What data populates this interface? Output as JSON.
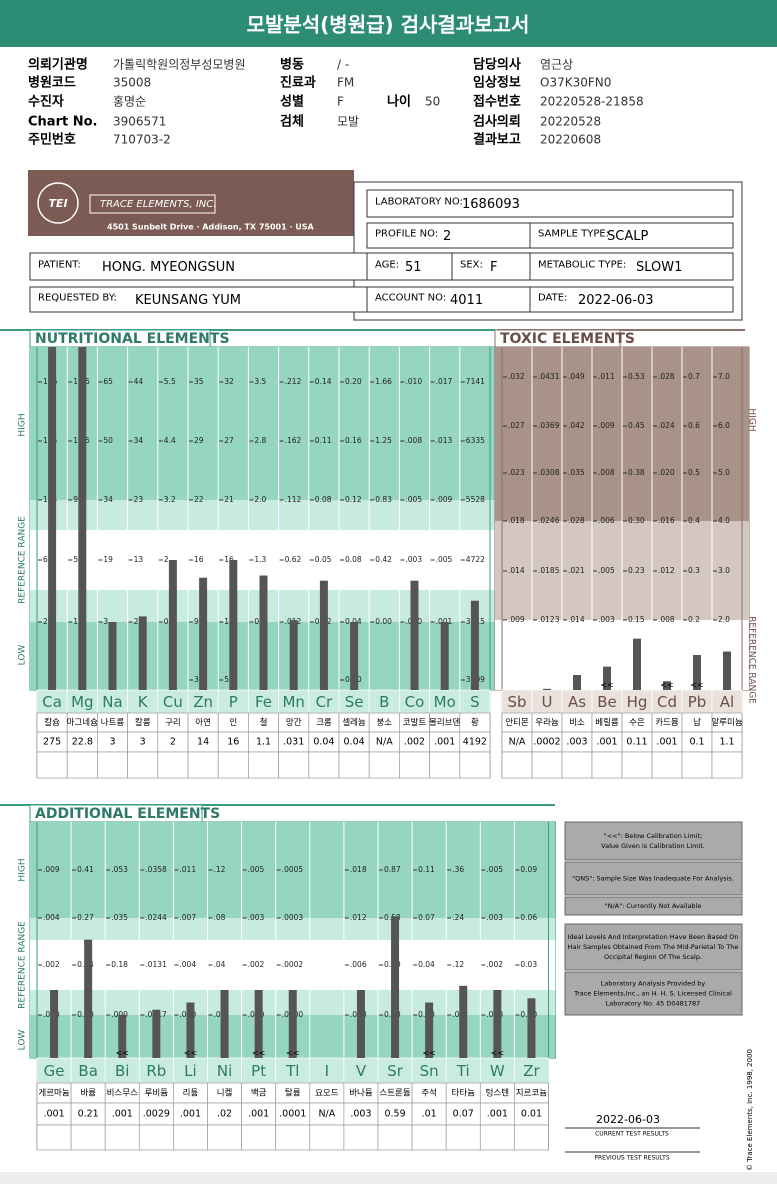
{
  "header": {
    "title": "모발분석(병원급) 검사결과보고서",
    "fields": [
      {
        "label": "의뢰기관명",
        "value": "가톨릭학원의정부성모병원"
      },
      {
        "label": "병동",
        "value": "/ -"
      },
      {
        "label": "담당의사",
        "value": "염근상"
      },
      {
        "label": "병원코드",
        "value": "35008"
      },
      {
        "label": "진료과",
        "value": "FM"
      },
      {
        "label": "임상정보",
        "value": "O37K30FN0"
      },
      {
        "label": "수진자",
        "value": "홍명순"
      },
      {
        "label": "성별",
        "value": "F"
      },
      {
        "label": "나이",
        "value": "50"
      },
      {
        "label": "접수번호",
        "value": "20220528-21858"
      },
      {
        "label": "Chart No.",
        "value": "3906571"
      },
      {
        "label": "검체",
        "value": "모발"
      },
      {
        "label": "검사의뢰",
        "value": "20220528"
      },
      {
        "label": "주민번호",
        "value": "710703-2"
      },
      {
        "label": "결과보고",
        "value": "20220608"
      }
    ]
  },
  "lab": {
    "logo": "TEI",
    "company": "TRACE ELEMENTS, INC.",
    "address": "4501 Sunbelt Drive  ·  Addison, TX 75001  ·  USA",
    "fields": [
      {
        "label": "LABORATORY NO:",
        "value": "1686093"
      },
      {
        "label": "PROFILE NO:",
        "value": "2"
      },
      {
        "label": "SAMPLE TYPE:",
        "value": "SCALP"
      },
      {
        "label": "PATIENT:",
        "value": "HONG. MYEONGSUN"
      },
      {
        "label": "AGE:",
        "value": "51"
      },
      {
        "label": "SEX:",
        "value": "F"
      },
      {
        "label": "METABOLIC TYPE:",
        "value": "SLOW1"
      },
      {
        "label": "REQUESTED BY:",
        "value": "KEUNSANG YUM"
      },
      {
        "label": "ACCOUNT NO:",
        "value": "4011"
      },
      {
        "label": "DATE:",
        "value": "2022-06-03"
      }
    ]
  },
  "nutritional": {
    "title": "NUTRITIONAL ELEMENTS",
    "side_labels": [
      "HIGH",
      "REFERENCE RANGE",
      "LOW"
    ],
    "columns": [
      {
        "symbol": "Ca",
        "name": "칼슘",
        "result": "275",
        "ticks": [
          "186",
          "145",
          "104",
          "63",
          "22"
        ]
      },
      {
        "symbol": "Mg",
        "name": "마그네슘",
        "result": "22.8",
        "ticks": [
          "17.5",
          "13.5",
          "9.4",
          "5",
          "1.3"
        ]
      },
      {
        "symbol": "Na",
        "name": "나트륨",
        "result": "3",
        "ticks": [
          "65",
          "50",
          "34",
          "19",
          "3"
        ]
      },
      {
        "symbol": "K",
        "name": "칼륨",
        "result": "3",
        "ticks": [
          "44",
          "34",
          "23",
          "13",
          "2"
        ]
      },
      {
        "symbol": "Cu",
        "name": "구리",
        "result": "2",
        "ticks": [
          "5.5",
          "4.4",
          "3.2",
          "2",
          "0.9"
        ]
      },
      {
        "symbol": "Zn",
        "name": "아연",
        "result": "14",
        "ticks": [
          "35",
          "29",
          "22",
          "16",
          "9"
        ],
        "extra": "3"
      },
      {
        "symbol": "P",
        "name": "인",
        "result": "16",
        "ticks": [
          "32",
          "27",
          "21",
          "16",
          "10"
        ],
        "extra": "5"
      },
      {
        "symbol": "Fe",
        "name": "철",
        "result": "1.1",
        "ticks": [
          "3.5",
          "2.8",
          "2.0",
          "1.3",
          "0.5"
        ]
      },
      {
        "symbol": "Mn",
        "name": "망간",
        "result": ".031",
        "ticks": [
          ".212",
          ".162",
          ".112",
          "0.62",
          ".012"
        ]
      },
      {
        "symbol": "Cr",
        "name": "크롬",
        "result": "0.04",
        "ticks": [
          "0.14",
          "0.11",
          "0.08",
          "0.05",
          "0.02"
        ]
      },
      {
        "symbol": "Se",
        "name": "셀레늄",
        "result": "0.04",
        "ticks": [
          "0.20",
          "0.16",
          "0.12",
          "0.08",
          "0.04"
        ],
        "extra": "0.00"
      },
      {
        "symbol": "B",
        "name": "붕소",
        "result": "N/A",
        "ticks": [
          "1.66",
          "1.25",
          "0.83",
          "0.42",
          "0.00"
        ]
      },
      {
        "symbol": "Co",
        "name": "코발트",
        "result": ".002",
        "ticks": [
          ".010",
          ".008",
          ".005",
          ".003",
          ".000"
        ]
      },
      {
        "symbol": "Mo",
        "name": "몰리브덴",
        "result": ".001",
        "ticks": [
          ".017",
          ".013",
          ".009",
          ".005",
          ".001"
        ]
      },
      {
        "symbol": "S",
        "name": "황",
        "result": "4192",
        "ticks": [
          "7141",
          "6335",
          "5528",
          "4722",
          "3915"
        ],
        "extra": "3109"
      }
    ]
  },
  "toxic": {
    "title": "TOXIC ELEMENTS",
    "side_labels": [
      "HIGH",
      "REFERENCE RANGE"
    ],
    "columns": [
      {
        "symbol": "Sb",
        "name": "안티몬",
        "result": "N/A",
        "ticks": [
          ".032",
          ".027",
          ".023",
          ".018",
          ".014",
          ".009"
        ]
      },
      {
        "symbol": "U",
        "name": "우라늄",
        "result": ".0002",
        "ticks": [
          ".0431",
          ".0369",
          ".0308",
          ".0246",
          ".0185",
          ".0123"
        ]
      },
      {
        "symbol": "As",
        "name": "비소",
        "result": ".003",
        "ticks": [
          ".049",
          ".042",
          ".035",
          ".028",
          ".021",
          ".014"
        ]
      },
      {
        "symbol": "Be",
        "name": "베릴륨",
        "result": ".001",
        "mark": "<<",
        "ticks": [
          ".011",
          ".009",
          ".008",
          ".006",
          ".005",
          ".003"
        ]
      },
      {
        "symbol": "Hg",
        "name": "수은",
        "result": "0.11",
        "ticks": [
          "0.53",
          "0.45",
          "0.38",
          "0.30",
          "0.23",
          "0.15"
        ]
      },
      {
        "symbol": "Cd",
        "name": "카드뮴",
        "result": ".001",
        "mark": "<<",
        "ticks": [
          ".028",
          ".024",
          ".020",
          ".016",
          ".012",
          ".008"
        ]
      },
      {
        "symbol": "Pb",
        "name": "납",
        "result": "0.1",
        "mark": "<<",
        "ticks": [
          "0.7",
          "0.6",
          "0.5",
          "0.4",
          "0.3",
          "0.2"
        ]
      },
      {
        "symbol": "Al",
        "name": "알루미늄",
        "result": "1.1",
        "ticks": [
          "7.0",
          "6.0",
          "5.0",
          "4.0",
          "3.0",
          "2.0"
        ]
      }
    ]
  },
  "additional": {
    "title": "ADDITIONAL ELEMENTS",
    "side_labels": [
      "HIGH",
      "REFERENCE RANGE",
      "LOW"
    ],
    "columns": [
      {
        "symbol": "Ge",
        "name": "게르마늄",
        "result": ".001",
        "ticks": [
          ".009",
          ".004",
          ".002",
          ".000"
        ]
      },
      {
        "symbol": "Ba",
        "name": "바륨",
        "result": "0.21",
        "ticks": [
          "0.41",
          "0.27",
          "0.14",
          "0.00"
        ]
      },
      {
        "symbol": "Bi",
        "name": "비스무스",
        "result": ".001",
        "mark": "<<",
        "ticks": [
          ".053",
          ".035",
          "0.18",
          ".000"
        ]
      },
      {
        "symbol": "Rb",
        "name": "루비듐",
        "result": ".0029",
        "ticks": [
          ".0358",
          ".0244",
          ".0131",
          ".0017"
        ]
      },
      {
        "symbol": "Li",
        "name": "리튬",
        "result": ".001",
        "mark": "<<",
        "ticks": [
          ".011",
          ".007",
          ".004",
          ".000"
        ]
      },
      {
        "symbol": "Ni",
        "name": "니켈",
        "result": ".02",
        "ticks": [
          ".12",
          ".08",
          ".04",
          ".00"
        ]
      },
      {
        "symbol": "Pt",
        "name": "백금",
        "result": ".001",
        "mark": "<<",
        "ticks": [
          ".005",
          ".003",
          ".002",
          ".000"
        ]
      },
      {
        "symbol": "Tl",
        "name": "탈륨",
        "result": ".0001",
        "mark": "<<",
        "ticks": [
          ".0005",
          ".0003",
          ".0002",
          ".0000"
        ]
      },
      {
        "symbol": "I",
        "name": "요오드",
        "result": "N/A",
        "ticks": []
      },
      {
        "symbol": "V",
        "name": "바나듐",
        "result": ".003",
        "ticks": [
          ".018",
          ".012",
          ".006",
          ".000"
        ]
      },
      {
        "symbol": "Sr",
        "name": "스트론튬",
        "result": "0.59",
        "ticks": [
          "0.87",
          "0.58",
          "0.30",
          "0.00"
        ]
      },
      {
        "symbol": "Sn",
        "name": "주석",
        "result": ".01",
        "mark": "<<",
        "ticks": [
          "0.11",
          "0.07",
          "0.04",
          "0.00"
        ]
      },
      {
        "symbol": "Ti",
        "name": "타타늄",
        "result": "0.07",
        "ticks": [
          ".36",
          ".24",
          ".12",
          ".00"
        ]
      },
      {
        "symbol": "W",
        "name": "텅스텐",
        "result": ".001",
        "mark": "<<",
        "ticks": [
          ".005",
          ".003",
          ".002",
          ".000"
        ]
      },
      {
        "symbol": "Zr",
        "name": "지르코늄",
        "result": "0.01",
        "ticks": [
          "0.09",
          "0.06",
          "0.03",
          "0.00"
        ]
      }
    ]
  },
  "notes": [
    [
      "\"<<\": Below Calibration Limit;",
      "Value Given is Calibration Limit."
    ],
    [
      "\"QNS\": Sample Size Was Inadequate For Analysis."
    ],
    [
      "\"N/A\": Currently Not Available"
    ],
    [
      "Ideal Levels And Interpretation Have Been Based On",
      "Hair Samples Obtained From The Mid-Parietal To The",
      "Occipital Region Of The Scalp."
    ],
    [
      "Laboratory Analysis Provided by",
      "Trace Elements,Inc., an H. H. S. Licensed Clinical",
      "Laboratory No. 45 D0481787"
    ]
  ],
  "footer": {
    "date": "2022-06-03",
    "current": "CURRENT TEST RESULTS",
    "previous": "PREVIOUS TEST RESULTS",
    "copyright": "© Trace Elements, Inc. 1998, 2000"
  }
}
